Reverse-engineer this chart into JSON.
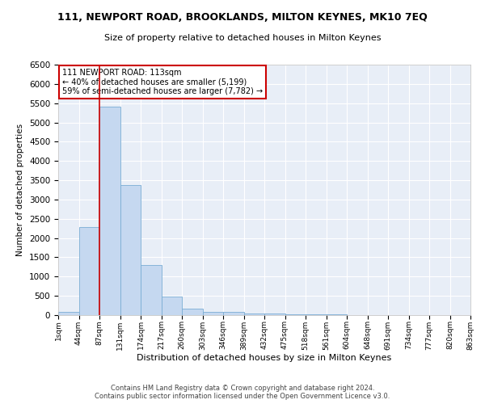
{
  "title": "111, NEWPORT ROAD, BROOKLANDS, MILTON KEYNES, MK10 7EQ",
  "subtitle": "Size of property relative to detached houses in Milton Keynes",
  "xlabel": "Distribution of detached houses by size in Milton Keynes",
  "ylabel": "Number of detached properties",
  "bar_values": [
    75,
    2280,
    5420,
    3380,
    1290,
    480,
    160,
    90,
    75,
    50,
    40,
    30,
    20,
    15,
    10,
    8,
    5,
    4,
    3,
    2
  ],
  "bin_labels": [
    "1sqm",
    "44sqm",
    "87sqm",
    "131sqm",
    "174sqm",
    "217sqm",
    "260sqm",
    "303sqm",
    "346sqm",
    "389sqm",
    "432sqm",
    "475sqm",
    "518sqm",
    "561sqm",
    "604sqm",
    "648sqm",
    "691sqm",
    "734sqm",
    "777sqm",
    "820sqm",
    "863sqm"
  ],
  "bar_color": "#c5d8f0",
  "bar_edge_color": "#7aadd4",
  "red_line_bin": 2,
  "annotation_text": "111 NEWPORT ROAD: 113sqm\n← 40% of detached houses are smaller (5,199)\n59% of semi-detached houses are larger (7,782) →",
  "annotation_box_color": "#ffffff",
  "annotation_border_color": "#cc0000",
  "ylim": [
    0,
    6500
  ],
  "yticks": [
    0,
    500,
    1000,
    1500,
    2000,
    2500,
    3000,
    3500,
    4000,
    4500,
    5000,
    5500,
    6000,
    6500
  ],
  "footer_line1": "Contains HM Land Registry data © Crown copyright and database right 2024.",
  "footer_line2": "Contains public sector information licensed under the Open Government Licence v3.0.",
  "fig_bg_color": "#ffffff",
  "plot_bg_color": "#e8eef7"
}
